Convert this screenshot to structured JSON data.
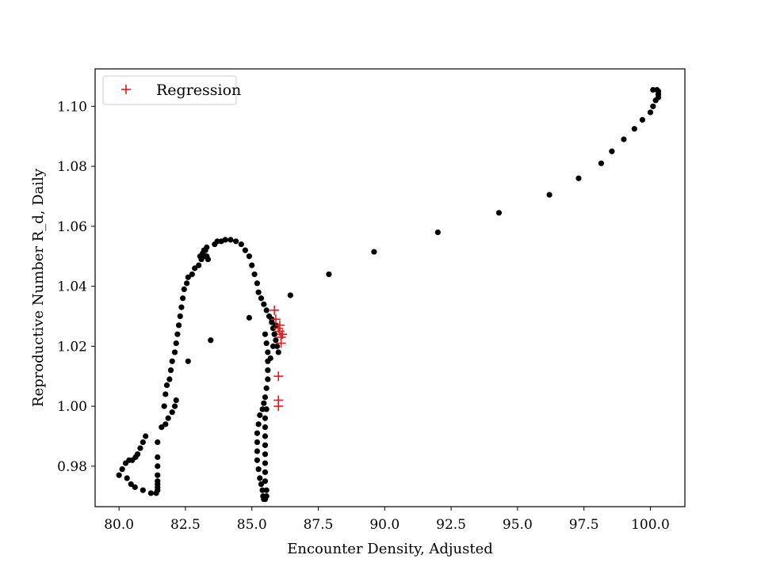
{
  "chart_data": {
    "type": "scatter",
    "title": "",
    "xlabel": "Encounter Density, Adjusted",
    "ylabel": "Reproductive Number R_d, Daily",
    "xlim": [
      79.1,
      101.3
    ],
    "ylim": [
      0.9665,
      1.1125
    ],
    "xticks": [
      80.0,
      82.5,
      85.0,
      87.5,
      90.0,
      92.5,
      95.0,
      97.5,
      100.0
    ],
    "xtick_labels": [
      "80.0",
      "82.5",
      "85.0",
      "87.5",
      "90.0",
      "92.5",
      "95.0",
      "97.5",
      "100.0"
    ],
    "yticks": [
      0.98,
      1.0,
      1.02,
      1.04,
      1.06,
      1.08,
      1.1
    ],
    "ytick_labels": [
      "0.98",
      "1.00",
      "1.02",
      "1.04",
      "1.06",
      "1.08",
      "1.10"
    ],
    "grid": false,
    "legend": {
      "position": "top-left",
      "entries": [
        "Regression"
      ]
    },
    "colors": {
      "observed": "#000000",
      "regression": "#e31a1c"
    },
    "series": [
      {
        "marker": "dot",
        "color": "#000000",
        "points": [
          [
            80.0,
            0.977
          ],
          [
            80.12,
            0.979
          ],
          [
            80.25,
            0.981
          ],
          [
            80.38,
            0.982
          ],
          [
            80.5,
            0.982
          ],
          [
            80.62,
            0.983
          ],
          [
            80.7,
            0.984
          ],
          [
            80.8,
            0.986
          ],
          [
            80.9,
            0.988
          ],
          [
            81.0,
            0.99
          ],
          [
            80.3,
            0.976
          ],
          [
            80.45,
            0.974
          ],
          [
            80.6,
            0.973
          ],
          [
            80.9,
            0.972
          ],
          [
            81.2,
            0.971
          ],
          [
            81.4,
            0.971
          ],
          [
            81.45,
            0.972
          ],
          [
            81.45,
            0.973
          ],
          [
            81.45,
            0.974
          ],
          [
            81.45,
            0.975
          ],
          [
            81.45,
            0.977
          ],
          [
            81.45,
            0.98
          ],
          [
            81.45,
            0.983
          ],
          [
            81.45,
            0.988
          ],
          [
            81.6,
            0.993
          ],
          [
            81.75,
            0.994
          ],
          [
            81.85,
            0.996
          ],
          [
            82.0,
            0.998
          ],
          [
            82.1,
            1.0
          ],
          [
            82.15,
            1.002
          ],
          [
            81.7,
            1.0
          ],
          [
            81.75,
            1.004
          ],
          [
            81.8,
            1.007
          ],
          [
            81.9,
            1.009
          ],
          [
            81.95,
            1.012
          ],
          [
            82.0,
            1.015
          ],
          [
            82.1,
            1.018
          ],
          [
            82.15,
            1.021
          ],
          [
            82.2,
            1.024
          ],
          [
            82.25,
            1.027
          ],
          [
            82.3,
            1.03
          ],
          [
            82.35,
            1.033
          ],
          [
            82.4,
            1.036
          ],
          [
            82.45,
            1.039
          ],
          [
            82.55,
            1.041
          ],
          [
            82.6,
            1.043
          ],
          [
            82.75,
            1.044
          ],
          [
            82.85,
            1.046
          ],
          [
            83.0,
            1.047
          ],
          [
            83.1,
            1.049
          ],
          [
            83.2,
            1.05
          ],
          [
            83.25,
            1.052
          ],
          [
            83.3,
            1.053
          ],
          [
            83.05,
            1.05
          ],
          [
            83.15,
            1.051
          ],
          [
            83.2,
            1.052
          ],
          [
            83.3,
            1.05
          ],
          [
            83.35,
            1.049
          ],
          [
            83.6,
            1.054
          ],
          [
            83.7,
            1.055
          ],
          [
            83.85,
            1.055
          ],
          [
            84.0,
            1.0555
          ],
          [
            84.2,
            1.0555
          ],
          [
            84.4,
            1.055
          ],
          [
            84.6,
            1.054
          ],
          [
            84.75,
            1.052
          ],
          [
            84.9,
            1.05
          ],
          [
            85.0,
            1.047
          ],
          [
            85.1,
            1.044
          ],
          [
            85.2,
            1.041
          ],
          [
            85.25,
            1.038
          ],
          [
            85.35,
            1.036
          ],
          [
            85.45,
            1.034
          ],
          [
            85.55,
            1.032
          ],
          [
            85.65,
            1.03
          ],
          [
            85.75,
            1.028
          ],
          [
            85.8,
            1.026
          ],
          [
            85.85,
            1.024
          ],
          [
            85.9,
            1.022
          ],
          [
            85.95,
            1.02
          ],
          [
            86.0,
            1.018
          ],
          [
            82.6,
            1.015
          ],
          [
            83.45,
            1.022
          ],
          [
            84.9,
            1.0295
          ],
          [
            86.45,
            1.037
          ],
          [
            85.5,
            1.024
          ],
          [
            85.55,
            1.021
          ],
          [
            85.6,
            1.018
          ],
          [
            85.6,
            1.015
          ],
          [
            85.6,
            1.012
          ],
          [
            85.6,
            1.009
          ],
          [
            85.55,
            1.006
          ],
          [
            85.5,
            1.003
          ],
          [
            85.45,
            1.001
          ],
          [
            85.4,
            0.999
          ],
          [
            85.3,
            0.997
          ],
          [
            85.25,
            0.994
          ],
          [
            85.2,
            0.991
          ],
          [
            85.2,
            0.988
          ],
          [
            85.2,
            0.985
          ],
          [
            85.2,
            0.982
          ],
          [
            85.25,
            0.979
          ],
          [
            85.3,
            0.976
          ],
          [
            85.35,
            0.974
          ],
          [
            85.4,
            0.972
          ],
          [
            85.42,
            0.97
          ],
          [
            85.45,
            0.969
          ],
          [
            85.5,
            0.969
          ],
          [
            85.55,
            0.97
          ],
          [
            85.55,
            0.972
          ],
          [
            85.5,
            0.975
          ],
          [
            85.5,
            0.978
          ],
          [
            85.5,
            0.981
          ],
          [
            85.5,
            0.984
          ],
          [
            85.5,
            0.987
          ],
          [
            85.5,
            0.99
          ],
          [
            85.5,
            0.993
          ],
          [
            85.5,
            0.996
          ],
          [
            85.55,
            0.999
          ],
          [
            85.7,
            1.016
          ],
          [
            85.8,
            1.02
          ],
          [
            85.85,
            1.024
          ],
          [
            85.9,
            1.027
          ],
          [
            85.75,
            1.029
          ],
          [
            87.9,
            1.044
          ],
          [
            89.6,
            1.0515
          ],
          [
            92.0,
            1.058
          ],
          [
            94.3,
            1.0645
          ],
          [
            96.2,
            1.0705
          ],
          [
            97.3,
            1.076
          ],
          [
            98.15,
            1.081
          ],
          [
            98.55,
            1.085
          ],
          [
            99.0,
            1.089
          ],
          [
            99.4,
            1.0925
          ],
          [
            99.7,
            1.0955
          ],
          [
            100.0,
            1.098
          ],
          [
            100.1,
            1.1
          ],
          [
            100.2,
            1.102
          ],
          [
            100.3,
            1.103
          ],
          [
            100.3,
            1.104
          ],
          [
            100.3,
            1.105
          ],
          [
            100.1,
            1.1055
          ],
          [
            100.25,
            1.1055
          ]
        ]
      },
      {
        "name": "Regression",
        "marker": "plus",
        "color": "#e31a1c",
        "points": [
          [
            85.85,
            1.032
          ],
          [
            85.9,
            1.029
          ],
          [
            86.0,
            1.026
          ],
          [
            86.05,
            1.025
          ],
          [
            86.1,
            1.023
          ],
          [
            86.15,
            1.024
          ],
          [
            86.1,
            1.021
          ],
          [
            86.05,
            1.027
          ],
          [
            86.0,
            1.01
          ],
          [
            86.0,
            1.002
          ],
          [
            86.0,
            1.0
          ]
        ]
      }
    ]
  }
}
